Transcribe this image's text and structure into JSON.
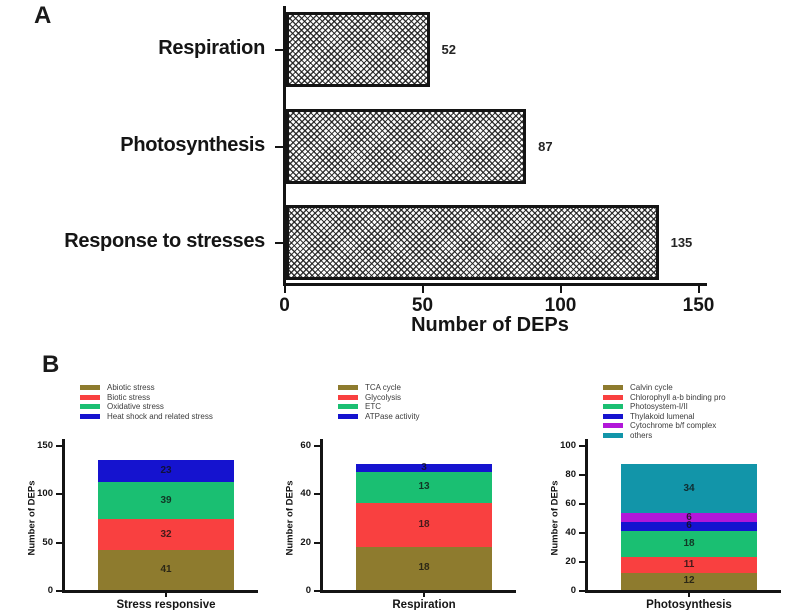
{
  "panels": {
    "a": "A",
    "b": "B"
  },
  "colors": {
    "axis": "#141414",
    "olive": "#8e7b2e",
    "red": "#f94040",
    "green": "#1abf72",
    "blue": "#1513cf",
    "magenta": "#b217d9",
    "teal": "#1295a9"
  },
  "chart_data": [
    {
      "id": "panel-a-deps",
      "type": "bar",
      "orientation": "horizontal",
      "categories": [
        "Respiration",
        "Photosynthesis",
        "Response to stresses"
      ],
      "values": [
        52,
        87,
        135
      ],
      "xlabel": "Number of DEPs",
      "xticks": [
        0,
        50,
        100,
        150
      ],
      "xlim": [
        0,
        150
      ],
      "bar_style": "black-and-white checkered hatch fill with black border",
      "grid": false
    },
    {
      "id": "stress-responsive",
      "type": "bar",
      "subtype": "stacked",
      "category": "Stress responsive",
      "ylabel": "Number of DEPs",
      "yticks": [
        0,
        50,
        100,
        150
      ],
      "ylim": [
        0,
        150
      ],
      "legend_position": "top",
      "series_order": "bottom-to-top",
      "series": [
        {
          "name": "Abiotic stress",
          "value": 41,
          "color": "#8e7b2e"
        },
        {
          "name": "Biotic stress",
          "value": 32,
          "color": "#f94040"
        },
        {
          "name": "Oxidative stress",
          "value": 39,
          "color": "#1abf72"
        },
        {
          "name": "Heat shock and related stress",
          "value": 23,
          "color": "#1513cf"
        }
      ],
      "total": 135
    },
    {
      "id": "respiration",
      "type": "bar",
      "subtype": "stacked",
      "category": "Respiration",
      "ylabel": "Number of DEPs",
      "yticks": [
        0,
        20,
        40,
        60
      ],
      "ylim": [
        0,
        60
      ],
      "legend_position": "top",
      "series_order": "bottom-to-top",
      "series": [
        {
          "name": "TCA cycle",
          "value": 18,
          "color": "#8e7b2e"
        },
        {
          "name": "Glycolysis",
          "value": 18,
          "color": "#f94040"
        },
        {
          "name": "ETC",
          "value": 13,
          "color": "#1abf72"
        },
        {
          "name": "ATPase activity",
          "value": 3,
          "color": "#1513cf"
        }
      ],
      "total": 52
    },
    {
      "id": "photosynthesis",
      "type": "bar",
      "subtype": "stacked",
      "category": "Photosynthesis",
      "ylabel": "Number of DEPs",
      "yticks": [
        0,
        20,
        40,
        60,
        80,
        100
      ],
      "ylim": [
        0,
        100
      ],
      "legend_position": "top",
      "series_order": "bottom-to-top",
      "series": [
        {
          "name": "Calvin cycle",
          "value": 12,
          "color": "#8e7b2e"
        },
        {
          "name": "Chlorophyll a-b binding pro",
          "value": 11,
          "color": "#f94040"
        },
        {
          "name": "Photosystem-I/II",
          "value": 18,
          "color": "#1abf72"
        },
        {
          "name": "Thylakoid lumenal",
          "value": 6,
          "color": "#1513cf"
        },
        {
          "name": "Cytochrome b/f complex",
          "value": 6,
          "color": "#b217d9"
        },
        {
          "name": "others",
          "value": 34,
          "color": "#1295a9"
        }
      ],
      "total": 87
    }
  ]
}
